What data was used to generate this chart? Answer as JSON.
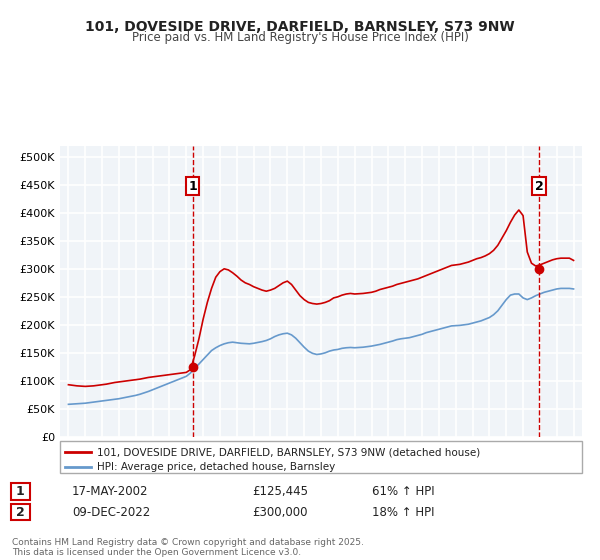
{
  "title1": "101, DOVESIDE DRIVE, DARFIELD, BARNSLEY, S73 9NW",
  "title2": "Price paid vs. HM Land Registry's House Price Index (HPI)",
  "legend_label1": "101, DOVESIDE DRIVE, DARFIELD, BARNSLEY, S73 9NW (detached house)",
  "legend_label2": "HPI: Average price, detached house, Barnsley",
  "marker1_label": "1",
  "marker1_date": "17-MAY-2002",
  "marker1_price": "£125,445",
  "marker1_hpi": "61% ↑ HPI",
  "marker1_x": 2002.37,
  "marker1_y": 125445,
  "marker2_label": "2",
  "marker2_date": "09-DEC-2022",
  "marker2_price": "£300,000",
  "marker2_hpi": "18% ↑ HPI",
  "marker2_x": 2022.94,
  "marker2_y": 300000,
  "bg_color": "#f0f4f8",
  "grid_color": "#ffffff",
  "line1_color": "#cc0000",
  "line2_color": "#6699cc",
  "vline_color": "#cc0000",
  "marker_color": "#cc0000",
  "ylim": [
    0,
    520000
  ],
  "xlim": [
    1994.5,
    2025.5
  ],
  "yticks": [
    0,
    50000,
    100000,
    150000,
    200000,
    250000,
    300000,
    350000,
    400000,
    450000,
    500000
  ],
  "ytick_labels": [
    "£0",
    "£50K",
    "£100K",
    "£150K",
    "£200K",
    "£250K",
    "£300K",
    "£350K",
    "£400K",
    "£450K",
    "£500K"
  ],
  "xticks": [
    1995,
    1996,
    1997,
    1998,
    1999,
    2000,
    2001,
    2002,
    2003,
    2004,
    2005,
    2006,
    2007,
    2008,
    2009,
    2010,
    2011,
    2012,
    2013,
    2014,
    2015,
    2016,
    2017,
    2018,
    2019,
    2020,
    2021,
    2022,
    2023,
    2024,
    2025
  ],
  "footnote": "Contains HM Land Registry data © Crown copyright and database right 2025.\nThis data is licensed under the Open Government Licence v3.0.",
  "hpi_x": [
    1995.0,
    1995.25,
    1995.5,
    1995.75,
    1996.0,
    1996.25,
    1996.5,
    1996.75,
    1997.0,
    1997.25,
    1997.5,
    1997.75,
    1998.0,
    1998.25,
    1998.5,
    1998.75,
    1999.0,
    1999.25,
    1999.5,
    1999.75,
    2000.0,
    2000.25,
    2000.5,
    2000.75,
    2001.0,
    2001.25,
    2001.5,
    2001.75,
    2002.0,
    2002.25,
    2002.5,
    2002.75,
    2003.0,
    2003.25,
    2003.5,
    2003.75,
    2004.0,
    2004.25,
    2004.5,
    2004.75,
    2005.0,
    2005.25,
    2005.5,
    2005.75,
    2006.0,
    2006.25,
    2006.5,
    2006.75,
    2007.0,
    2007.25,
    2007.5,
    2007.75,
    2008.0,
    2008.25,
    2008.5,
    2008.75,
    2009.0,
    2009.25,
    2009.5,
    2009.75,
    2010.0,
    2010.25,
    2010.5,
    2010.75,
    2011.0,
    2011.25,
    2011.5,
    2011.75,
    2012.0,
    2012.25,
    2012.5,
    2012.75,
    2013.0,
    2013.25,
    2013.5,
    2013.75,
    2014.0,
    2014.25,
    2014.5,
    2014.75,
    2015.0,
    2015.25,
    2015.5,
    2015.75,
    2016.0,
    2016.25,
    2016.5,
    2016.75,
    2017.0,
    2017.25,
    2017.5,
    2017.75,
    2018.0,
    2018.25,
    2018.5,
    2018.75,
    2019.0,
    2019.25,
    2019.5,
    2019.75,
    2020.0,
    2020.25,
    2020.5,
    2020.75,
    2021.0,
    2021.25,
    2021.5,
    2021.75,
    2022.0,
    2022.25,
    2022.5,
    2022.75,
    2023.0,
    2023.25,
    2023.5,
    2023.75,
    2024.0,
    2024.25,
    2024.5,
    2024.75,
    2025.0
  ],
  "hpi_y": [
    58000,
    58500,
    59000,
    59500,
    60000,
    61000,
    62000,
    63000,
    64000,
    65000,
    66000,
    67000,
    68000,
    69500,
    71000,
    72500,
    74000,
    76000,
    78500,
    81000,
    84000,
    87000,
    90000,
    93000,
    96000,
    99000,
    102000,
    105000,
    108000,
    114000,
    122000,
    130000,
    138000,
    146000,
    154000,
    159000,
    163000,
    166000,
    168000,
    169000,
    168000,
    167000,
    166500,
    166000,
    167000,
    168500,
    170000,
    172000,
    175000,
    179000,
    182000,
    184000,
    185000,
    182000,
    176000,
    168000,
    160000,
    153000,
    149000,
    147000,
    148000,
    150000,
    153000,
    155000,
    156000,
    158000,
    159000,
    159500,
    159000,
    159500,
    160000,
    161000,
    162000,
    163500,
    165000,
    167000,
    169000,
    171000,
    173500,
    175000,
    176000,
    177000,
    179000,
    181000,
    183000,
    186000,
    188000,
    190000,
    192000,
    194000,
    196000,
    198000,
    198500,
    199000,
    200000,
    201000,
    203000,
    205000,
    207000,
    210000,
    213000,
    218000,
    225000,
    235000,
    245000,
    253000,
    255000,
    255000,
    248000,
    245000,
    248000,
    252000,
    255000,
    258000,
    260000,
    262000,
    264000,
    265000,
    265000,
    265000,
    264000
  ],
  "pp_x": [
    1995.0,
    1995.25,
    1995.5,
    1995.75,
    1996.0,
    1996.25,
    1996.5,
    1996.75,
    1997.0,
    1997.25,
    1997.5,
    1997.75,
    1998.0,
    1998.25,
    1998.5,
    1998.75,
    1999.0,
    1999.25,
    1999.5,
    1999.75,
    2000.0,
    2000.25,
    2000.5,
    2000.75,
    2001.0,
    2001.25,
    2001.5,
    2001.75,
    2002.0,
    2002.25,
    2002.5,
    2002.75,
    2003.0,
    2003.25,
    2003.5,
    2003.75,
    2004.0,
    2004.25,
    2004.5,
    2004.75,
    2005.0,
    2005.25,
    2005.5,
    2005.75,
    2006.0,
    2006.25,
    2006.5,
    2006.75,
    2007.0,
    2007.25,
    2007.5,
    2007.75,
    2008.0,
    2008.25,
    2008.5,
    2008.75,
    2009.0,
    2009.25,
    2009.5,
    2009.75,
    2010.0,
    2010.25,
    2010.5,
    2010.75,
    2011.0,
    2011.25,
    2011.5,
    2011.75,
    2012.0,
    2012.25,
    2012.5,
    2012.75,
    2013.0,
    2013.25,
    2013.5,
    2013.75,
    2014.0,
    2014.25,
    2014.5,
    2014.75,
    2015.0,
    2015.25,
    2015.5,
    2015.75,
    2016.0,
    2016.25,
    2016.5,
    2016.75,
    2017.0,
    2017.25,
    2017.5,
    2017.75,
    2018.0,
    2018.25,
    2018.5,
    2018.75,
    2019.0,
    2019.25,
    2019.5,
    2019.75,
    2020.0,
    2020.25,
    2020.5,
    2020.75,
    2021.0,
    2021.25,
    2021.5,
    2021.75,
    2022.0,
    2022.25,
    2022.5,
    2022.75,
    2023.0,
    2023.25,
    2023.5,
    2023.75,
    2024.0,
    2024.25,
    2024.5,
    2024.75,
    2025.0
  ],
  "pp_y": [
    93000,
    92000,
    91000,
    90500,
    90000,
    90500,
    91000,
    92000,
    93000,
    94000,
    95500,
    97000,
    98000,
    99000,
    100000,
    101000,
    102000,
    103000,
    104500,
    106000,
    107000,
    108000,
    109000,
    110000,
    111000,
    112000,
    113000,
    114000,
    115000,
    120000,
    145000,
    175000,
    210000,
    240000,
    265000,
    285000,
    295000,
    300000,
    298000,
    293000,
    287000,
    280000,
    275000,
    272000,
    268000,
    265000,
    262000,
    260000,
    262000,
    265000,
    270000,
    275000,
    278000,
    272000,
    262000,
    252000,
    245000,
    240000,
    238000,
    237000,
    238000,
    240000,
    243000,
    248000,
    250000,
    253000,
    255000,
    256000,
    255000,
    255500,
    256000,
    257000,
    258000,
    260000,
    263000,
    265000,
    267000,
    269000,
    272000,
    274000,
    276000,
    278000,
    280000,
    282000,
    285000,
    288000,
    291000,
    294000,
    297000,
    300000,
    303000,
    306000,
    307000,
    308000,
    310000,
    312000,
    315000,
    318000,
    320000,
    323000,
    327000,
    333000,
    342000,
    355000,
    368000,
    383000,
    396000,
    405000,
    395000,
    330000,
    310000,
    305000,
    307000,
    310000,
    313000,
    316000,
    318000,
    319000,
    319000,
    319000,
    315000
  ]
}
